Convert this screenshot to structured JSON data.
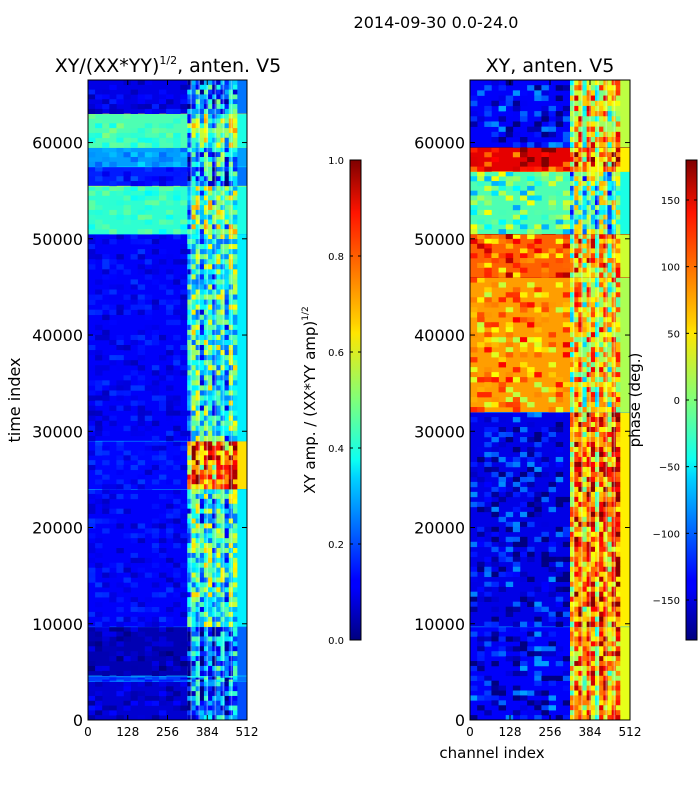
{
  "figure": {
    "suptitle": "2014-09-30 0.0-24.0",
    "colormap": "jet"
  },
  "chart_data": [
    {
      "type": "heatmap",
      "title": "XY/(XX*YY)^1/2, anten. V5",
      "title_main": "XY/(XX*YY)",
      "title_sup": "1/2",
      "title_rest": ", anten. V5",
      "xlabel": "",
      "ylabel": "time index",
      "xlim": [
        0,
        512
      ],
      "ylim": [
        0,
        66500
      ],
      "xticks": [
        0,
        128,
        256,
        384,
        512
      ],
      "yticks": [
        0,
        10000,
        20000,
        30000,
        40000,
        50000,
        60000
      ],
      "colorbar": {
        "label": "XY amp. / (XX*YY amp)^1/2",
        "label_main": "XY amp. / (XX*YY amp)",
        "label_sup": "1/2",
        "range": [
          0.0,
          1.0
        ],
        "ticks": [
          "0.0",
          "0.2",
          "0.4",
          "0.6",
          "0.8",
          "1.0"
        ],
        "tick_values": [
          0.0,
          0.2,
          0.4,
          0.6,
          0.8,
          1.0
        ]
      },
      "bands": [
        {
          "t0": 0,
          "t1": 4000,
          "bg": 0.08,
          "right": 0.25
        },
        {
          "t0": 4000,
          "t1": 4600,
          "bg": 0.18,
          "right": 0.3
        },
        {
          "t0": 4600,
          "t1": 9700,
          "bg": 0.05,
          "right": 0.28
        },
        {
          "t0": 9700,
          "t1": 24000,
          "bg": 0.12,
          "right": 0.45
        },
        {
          "t0": 24000,
          "t1": 29000,
          "bg": 0.13,
          "right": 0.82
        },
        {
          "t0": 29000,
          "t1": 50500,
          "bg": 0.12,
          "right": 0.45
        },
        {
          "t0": 50500,
          "t1": 55500,
          "bg": 0.42,
          "right": 0.5
        },
        {
          "t0": 55500,
          "t1": 57500,
          "bg": 0.15,
          "right": 0.3
        },
        {
          "t0": 57500,
          "t1": 59500,
          "bg": 0.28,
          "right": 0.35
        },
        {
          "t0": 59500,
          "t1": 63000,
          "bg": 0.45,
          "right": 0.5
        },
        {
          "t0": 63000,
          "t1": 66500,
          "bg": 0.1,
          "right": 0.3
        }
      ],
      "feature_channel_range": [
        320,
        480
      ]
    },
    {
      "type": "heatmap",
      "title": "XY, anten. V5",
      "xlabel": "channel index",
      "ylabel": "",
      "xlim": [
        0,
        512
      ],
      "ylim": [
        0,
        66500
      ],
      "xticks": [
        0,
        128,
        256,
        384,
        512
      ],
      "yticks": [
        0,
        10000,
        20000,
        30000,
        40000,
        50000,
        60000
      ],
      "colorbar": {
        "label": "phase (deg.)",
        "range": [
          -180,
          180
        ],
        "ticks": [
          "−150",
          "−100",
          "−50",
          "0",
          "50",
          "100",
          "150"
        ],
        "tick_values": [
          -150,
          -100,
          -50,
          0,
          50,
          100,
          150
        ]
      },
      "bands": [
        {
          "t0": 0,
          "t1": 9700,
          "bg": 0.12,
          "right": 0.75
        },
        {
          "t0": 9700,
          "t1": 32000,
          "bg": 0.1,
          "right": 0.8
        },
        {
          "t0": 32000,
          "t1": 46000,
          "bg": 0.72,
          "right": 0.68
        },
        {
          "t0": 46000,
          "t1": 50500,
          "bg": 0.78,
          "right": 0.72
        },
        {
          "t0": 50500,
          "t1": 57000,
          "bg": 0.45,
          "right": 0.5
        },
        {
          "t0": 57000,
          "t1": 59500,
          "bg": 0.9,
          "right": 0.8
        },
        {
          "t0": 59500,
          "t1": 66500,
          "bg": 0.12,
          "right": 0.7
        }
      ],
      "feature_channel_range": [
        320,
        480
      ]
    }
  ]
}
